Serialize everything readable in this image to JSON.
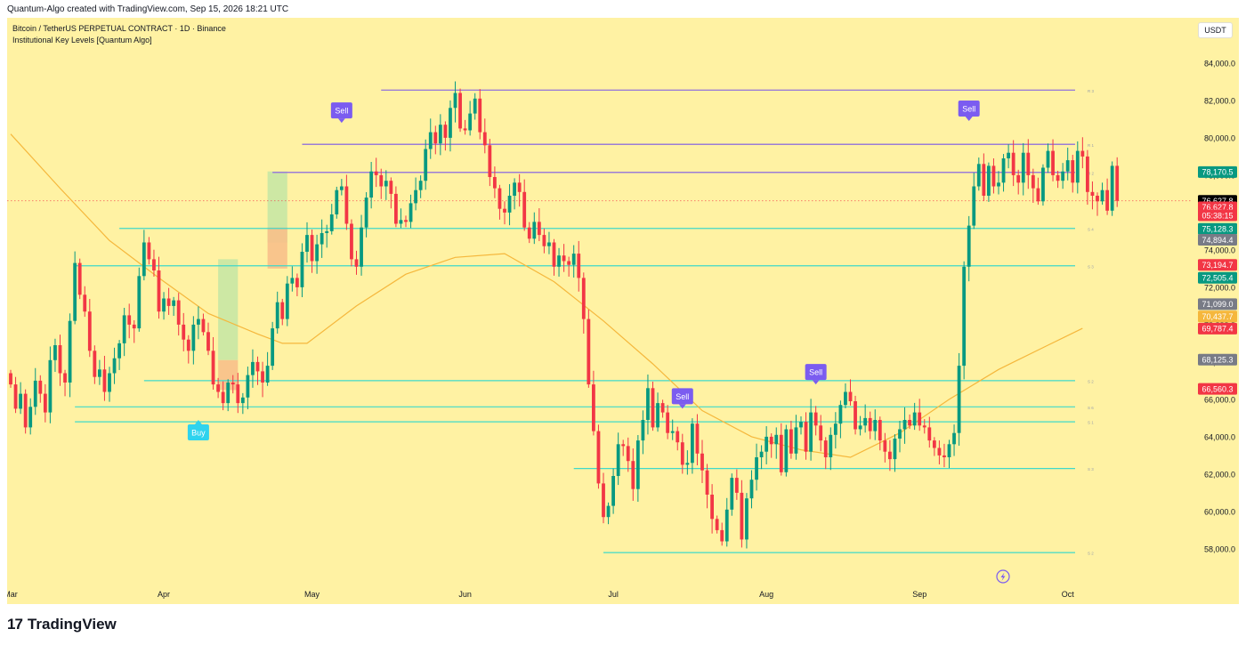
{
  "header": {
    "attribution": "Quantum-Algo created with TradingView.com, Sep 15, 2026 18:21 UTC"
  },
  "toolbar": {
    "currency": "USDT"
  },
  "footer": {
    "logo_mark": "17",
    "brand": "TradingView"
  },
  "colors": {
    "background": "#fff2a3",
    "up": "#089981",
    "down": "#f23645",
    "ma": "#f5b73c",
    "resistance": "#9b7dd6",
    "support": "#3fd9c9",
    "sell_signal": "#7b5cf0",
    "buy_signal": "#2ed3ee"
  },
  "chart_data": {
    "type": "candlestick",
    "title": "Bitcoin / TetherUS PERPETUAL CONTRACT · 1D · Binance",
    "subtitle": "Institutional Key Levels [Quantum Algo]",
    "ylim": [
      56800,
      85800
    ],
    "y_ticks": [
      "84,000.0",
      "82,000.0",
      "80,000.0",
      "78,000.0",
      "76,000.0",
      "74,000.0",
      "72,000.0",
      "70,000.0",
      "68,000.0",
      "66,000.0",
      "64,000.0",
      "62,000.0",
      "60,000.0",
      "58,000.0"
    ],
    "x_ticks": [
      "Mar",
      "Apr",
      "May",
      "Jun",
      "Jul",
      "Aug",
      "Sep",
      "Oct"
    ],
    "x_tick_days": [
      0,
      31,
      61,
      92,
      122,
      153,
      184,
      214
    ],
    "candles_close": [
      66800,
      65500,
      66300,
      64500,
      65600,
      67000,
      66300,
      65300,
      68100,
      68900,
      67400,
      66900,
      70200,
      73300,
      71600,
      70700,
      68600,
      67200,
      67600,
      66400,
      67400,
      68200,
      69000,
      70500,
      70000,
      69800,
      72600,
      74400,
      73500,
      72900,
      70700,
      71400,
      71000,
      71300,
      70000,
      69200,
      68600,
      70000,
      70300,
      69600,
      68600,
      66800,
      66400,
      65800,
      66900,
      66800,
      65800,
      66100,
      67300,
      68000,
      67500,
      66900,
      67800,
      69800,
      71200,
      70300,
      72200,
      72500,
      72000,
      73900,
      74800,
      73400,
      74300,
      74900,
      75000,
      75900,
      77200,
      77400,
      75400,
      73500,
      73100,
      75200,
      76800,
      78200,
      78000,
      77400,
      77700,
      77000,
      75400,
      75600,
      75500,
      76500,
      77200,
      77700,
      79400,
      80300,
      79700,
      80700,
      80000,
      81600,
      82400,
      80500,
      80400,
      81300,
      82100,
      80300,
      79600,
      77900,
      77300,
      76200,
      76000,
      76900,
      77600,
      77100,
      75200,
      74600,
      75500,
      74800,
      74200,
      74400,
      73100,
      73700,
      73400,
      73200,
      73800,
      72500,
      70300,
      66800,
      64300,
      61500,
      59700,
      60300,
      61900,
      63600,
      63500,
      62700,
      61200,
      63800,
      64900,
      66600,
      64500,
      65800,
      65300,
      64200,
      64300,
      63700,
      62500,
      62600,
      64700,
      63100,
      62200,
      60900,
      59600,
      59000,
      58400,
      60100,
      61800,
      61000,
      58500,
      60700,
      61700,
      62900,
      63200,
      64000,
      63600,
      64100,
      62100,
      64400,
      63100,
      64500,
      64800,
      63200,
      65300,
      64600,
      63800,
      62900,
      64100,
      64700,
      65700,
      66400,
      65900,
      64400,
      64600,
      65000,
      64300,
      64900,
      63800,
      63200,
      62800,
      63900,
      64400,
      64900,
      64600,
      65300,
      64600,
      64500,
      63800,
      63400,
      63000,
      62900,
      63600,
      64200,
      67800,
      73100,
      75300,
      77400,
      78600,
      76900,
      78500,
      77400,
      77600,
      78900,
      79200,
      78000,
      77600,
      79200,
      78000,
      77300,
      76600,
      78400,
      79300,
      78000,
      77700,
      78200,
      78800,
      77600,
      79300,
      79000,
      77100,
      76900,
      76600,
      77200,
      76100,
      78500,
      76628
    ],
    "moving_average": {
      "days": [
        0,
        10,
        20,
        30,
        40,
        50,
        55,
        60,
        70,
        80,
        90,
        100,
        110,
        120,
        130,
        140,
        150,
        160,
        170,
        180,
        190,
        200,
        210,
        217
      ],
      "values": [
        80200,
        77300,
        74500,
        72500,
        70600,
        69500,
        69000,
        69000,
        71000,
        72700,
        73600,
        73800,
        72300,
        70200,
        67900,
        65400,
        64000,
        63300,
        62900,
        64200,
        66000,
        67600,
        68900,
        69800
      ]
    },
    "levels": [
      {
        "label": "R 3",
        "price": 82550,
        "start_day": 75,
        "type": "resistance"
      },
      {
        "label": "R 1",
        "price": 79650,
        "start_day": 59,
        "type": "resistance"
      },
      {
        "label": "R 2",
        "price": 78150,
        "start_day": 53,
        "type": "resistance"
      },
      {
        "label": "S 4",
        "price": 75150,
        "start_day": 22,
        "type": "support"
      },
      {
        "label": "S 3",
        "price": 73150,
        "start_day": 13,
        "type": "support"
      },
      {
        "label": "S 2",
        "price": 67000,
        "start_day": 27,
        "type": "support"
      },
      {
        "label": "S 6",
        "price": 65600,
        "start_day": 13,
        "type": "support"
      },
      {
        "label": "S 1",
        "price": 64800,
        "start_day": 13,
        "type": "support"
      },
      {
        "label": "S 3",
        "price": 62300,
        "start_day": 114,
        "type": "support"
      },
      {
        "label": "S 2",
        "price": 57800,
        "start_day": 120,
        "type": "support"
      }
    ],
    "zones": [
      {
        "day": 42,
        "day_end": 46,
        "from": 68100,
        "to": 73500,
        "color": "green"
      },
      {
        "day": 42,
        "day_end": 46,
        "from": 66500,
        "to": 68100,
        "color": "orange"
      },
      {
        "day": 52,
        "day_end": 56,
        "from": 74400,
        "to": 78200,
        "color": "green"
      },
      {
        "day": 52,
        "day_end": 56,
        "from": 73000,
        "to": 75200,
        "color": "orange"
      }
    ],
    "signals": [
      {
        "label": "Sell",
        "day": 67,
        "price": 80800,
        "type": "sell"
      },
      {
        "label": "Buy",
        "day": 38,
        "price": 64900,
        "type": "buy"
      },
      {
        "label": "Sell",
        "day": 136,
        "price": 65500,
        "type": "sell"
      },
      {
        "label": "Sell",
        "day": 163,
        "price": 66800,
        "type": "sell"
      },
      {
        "label": "Sell",
        "day": 194,
        "price": 80900,
        "type": "sell"
      }
    ],
    "price_labels": [
      {
        "text": "78,170.5",
        "price": 78170.5,
        "color": "#089981"
      },
      {
        "text": "76,627.8",
        "price": 76627.8,
        "color": "#000000"
      },
      {
        "text": "76,627.8",
        "price": 76280,
        "color": "#f23645"
      },
      {
        "text": "05:38:15",
        "price": 75850,
        "color": "#f23645"
      },
      {
        "text": "75,128.3",
        "price": 75128.3,
        "color": "#089981"
      },
      {
        "text": "74,894.4",
        "price": 74540,
        "color": "#787b86"
      },
      {
        "text": "73,194.7",
        "price": 73194.7,
        "color": "#f23645"
      },
      {
        "text": "72,505.4",
        "price": 72505.4,
        "color": "#089981"
      },
      {
        "text": "71,099.0",
        "price": 71099.0,
        "color": "#787b86"
      },
      {
        "text": "70,437.7",
        "price": 70437.7,
        "color": "#f5b73c"
      },
      {
        "text": "69,787.4",
        "price": 69787.4,
        "color": "#f23645"
      },
      {
        "text": "68,125.3",
        "price": 68125.3,
        "color": "#787b86"
      },
      {
        "text": "66,560.3",
        "price": 66560.3,
        "color": "#f23645"
      }
    ]
  }
}
